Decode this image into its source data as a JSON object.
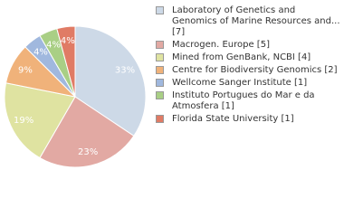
{
  "chart_data": {
    "type": "pie",
    "categories": [
      "Laboratory of Genetics and Genomics of Marine Resources and... [7]",
      "Macrogen. Europe [5]",
      "Mined from GenBank, NCBI [4]",
      "Centre for Biodiversity Genomics [2]",
      "Wellcome Sanger Institute [1]",
      "Instituto Portugues do Mar e da Atmosfera [1]",
      "Florida State University [1]"
    ],
    "values": [
      33,
      23,
      19,
      9,
      4,
      4,
      4
    ],
    "value_labels": [
      "33%",
      "23%",
      "19%",
      "9%",
      "4%",
      "4%",
      "4%"
    ],
    "colors": [
      "#cdd9e7",
      "#e2a9a3",
      "#dfe3a1",
      "#f0b27a",
      "#a0b8de",
      "#a9cf85",
      "#e07b65"
    ]
  }
}
